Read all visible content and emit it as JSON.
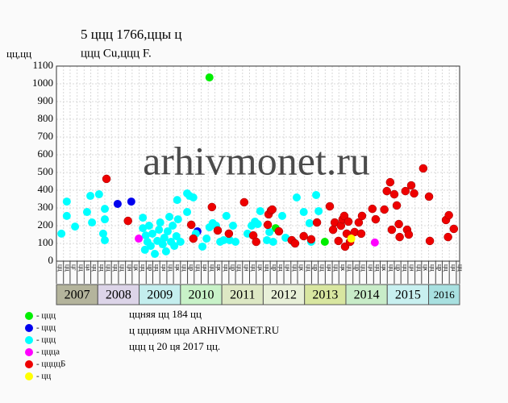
{
  "chart_data": {
    "type": "scatter",
    "title": "5 ццц 1766,ццы ц",
    "subtitle": "ццц Cu,ццц F.",
    "y_label": "цц,цц",
    "watermark": "arhivmonet.ru",
    "xlim": [
      2007,
      2016.75
    ],
    "ylim": [
      0,
      1100
    ],
    "yticks": [
      0,
      100,
      200,
      300,
      400,
      500,
      600,
      700,
      800,
      900,
      1000,
      1100
    ],
    "xticks": [
      {
        "value": 2007,
        "label": "цц"
      },
      {
        "value": 2007.17,
        "label": "цц"
      },
      {
        "value": 2007.33,
        "label": "цг"
      },
      {
        "value": 2007.5,
        "label": "цц"
      },
      {
        "value": 2007.67,
        "label": "ца"
      },
      {
        "value": 2007.83,
        "label": "цц"
      },
      {
        "value": 2008,
        "label": "цц"
      },
      {
        "value": 2008.17,
        "label": "цц"
      },
      {
        "value": 2008.33,
        "label": "цц"
      },
      {
        "value": 2008.5,
        "label": "цц"
      },
      {
        "value": 2008.67,
        "label": "цн"
      },
      {
        "value": 2008.83,
        "label": "цк"
      },
      {
        "value": 2009,
        "label": "цц"
      },
      {
        "value": 2009.17,
        "label": "цр"
      },
      {
        "value": 2009.33,
        "label": "цц"
      },
      {
        "value": 2009.5,
        "label": "цн"
      },
      {
        "value": 2009.67,
        "label": "цц"
      },
      {
        "value": 2009.83,
        "label": "цк"
      },
      {
        "value": 2010,
        "label": "цц"
      },
      {
        "value": 2010.17,
        "label": "цр"
      },
      {
        "value": 2010.33,
        "label": "цц"
      },
      {
        "value": 2010.5,
        "label": "цн"
      },
      {
        "value": 2010.67,
        "label": "цц"
      },
      {
        "value": 2010.83,
        "label": "цк"
      },
      {
        "value": 2011,
        "label": "цц"
      },
      {
        "value": 2011.17,
        "label": "цр"
      },
      {
        "value": 2011.33,
        "label": "цц"
      },
      {
        "value": 2011.5,
        "label": "цн"
      },
      {
        "value": 2011.67,
        "label": "цц"
      },
      {
        "value": 2011.83,
        "label": "цк"
      },
      {
        "value": 2012,
        "label": "цц"
      },
      {
        "value": 2012.17,
        "label": "цр"
      },
      {
        "value": 2012.33,
        "label": "цц"
      },
      {
        "value": 2012.5,
        "label": "цн"
      },
      {
        "value": 2012.67,
        "label": "цц"
      },
      {
        "value": 2012.83,
        "label": "цк"
      },
      {
        "value": 2013,
        "label": "цц"
      },
      {
        "value": 2013.17,
        "label": "цр"
      },
      {
        "value": 2013.33,
        "label": "цц"
      },
      {
        "value": 2013.5,
        "label": "цн"
      },
      {
        "value": 2013.67,
        "label": "цц"
      },
      {
        "value": 2013.83,
        "label": "цк"
      },
      {
        "value": 2014,
        "label": "цц"
      },
      {
        "value": 2014.17,
        "label": "цр"
      },
      {
        "value": 2014.33,
        "label": "цц"
      },
      {
        "value": 2014.5,
        "label": "цн"
      },
      {
        "value": 2014.67,
        "label": "цц"
      },
      {
        "value": 2014.83,
        "label": "цк"
      },
      {
        "value": 2015,
        "label": "цц"
      },
      {
        "value": 2015.17,
        "label": "цр"
      },
      {
        "value": 2015.33,
        "label": "цц"
      },
      {
        "value": 2015.5,
        "label": "цн"
      },
      {
        "value": 2015.67,
        "label": "цц"
      },
      {
        "value": 2015.83,
        "label": "цк"
      },
      {
        "value": 2016,
        "label": "цц"
      },
      {
        "value": 2016.17,
        "label": "цр"
      },
      {
        "value": 2016.33,
        "label": "цц"
      },
      {
        "value": 2016.5,
        "label": "цн"
      },
      {
        "value": 2016.67,
        "label": "цц"
      }
    ],
    "years": [
      "2007",
      "2008",
      "2009",
      "2010",
      "2011",
      "2012",
      "2013",
      "2014",
      "2015",
      "2016"
    ],
    "year_colors": [
      "#b4b49c",
      "#dcd4e8",
      "#c4eeee",
      "#c8f2c8",
      "#dde8c4",
      "#e8f0d8",
      "#d8e6a0",
      "#c8ecc8",
      "#c8f0f0",
      "#a8e0e0"
    ],
    "grid": true,
    "series": [
      {
        "name": "- ццц",
        "color": "#00ee00",
        "x": [
          2010.7,
          2012.3,
          2013.49
        ],
        "values": [
          1036,
          186,
          109
        ]
      },
      {
        "name": "- ццц",
        "color": "#0000ee",
        "x": [
          2008.48,
          2008.81,
          2010.41
        ],
        "values": [
          323,
          336,
          168
        ]
      },
      {
        "name": "- ццц",
        "color": "#00ffff",
        "x": [
          2007.12,
          2007.25,
          2007.25,
          2007.45,
          2007.74,
          2007.82,
          2007.86,
          2008.03,
          2008.13,
          2008.17,
          2008.17,
          2008.17,
          2009.09,
          2009.09,
          2009.14,
          2009.16,
          2009.2,
          2009.24,
          2009.28,
          2009.32,
          2009.38,
          2009.44,
          2009.48,
          2009.51,
          2009.57,
          2009.61,
          2009.65,
          2009.69,
          2009.73,
          2009.77,
          2009.81,
          2009.85,
          2009.9,
          2009.94,
          2010.0,
          2009.92,
          2010.16,
          2010.22,
          2010.16,
          2010.31,
          2010.37,
          2010.53,
          2010.63,
          2010.7,
          2010.78,
          2010.86,
          2010.96,
          2011.04,
          2011.11,
          2011.19,
          2011.27,
          2011.33,
          2011.62,
          2011.72,
          2011.8,
          2011.87,
          2011.93,
          2012.09,
          2012.15,
          2012.24,
          2012.46,
          2012.54,
          2012.73,
          2012.81,
          2012.98,
          2013.12,
          2013.28,
          2013.34,
          2013.16
        ],
        "values": [
          155,
          255,
          336,
          195,
          277,
          368,
          218,
          377,
          155,
          236,
          118,
          295,
          186,
          245,
          64,
          145,
          109,
          200,
          86,
          155,
          41,
          114,
          177,
          218,
          95,
          132,
          55,
          168,
          250,
          109,
          200,
          86,
          141,
          236,
          109,
          345,
          382,
          368,
          277,
          359,
          155,
          82,
          127,
          191,
          214,
          200,
          109,
          118,
          255,
          118,
          200,
          109,
          155,
          200,
          223,
          209,
          282,
          118,
          164,
          109,
          255,
          132,
          109,
          359,
          277,
          214,
          373,
          282,
          109
        ]
      },
      {
        "name": "- цццa",
        "color": "#ff00ff",
        "x": [
          2008.99,
          2014.7
        ],
        "values": [
          127,
          105
        ]
      },
      {
        "name": "- ццццБ",
        "color": "#ee0000",
        "x": [
          2008.21,
          2008.73,
          2010.26,
          2010.31,
          2010.76,
          2010.9,
          2011.17,
          2011.54,
          2011.76,
          2011.83,
          2012.13,
          2012.19,
          2012.22,
          2012.11,
          2012.38,
          2012.69,
          2012.77,
          2012.98,
          2013.16,
          2013.3,
          2013.61,
          2013.69,
          2013.73,
          2013.82,
          2013.88,
          2013.92,
          2013.96,
          2013.98,
          2014.02,
          2014.06,
          2014.1,
          2014.21,
          2014.31,
          2014.37,
          2014.39,
          2014.64,
          2014.72,
          2014.93,
          2014.99,
          2015.07,
          2015.11,
          2015.17,
          2015.23,
          2015.28,
          2015.3,
          2015.44,
          2015.48,
          2015.52,
          2015.58,
          2015.65,
          2015.87,
          2016.01,
          2016.03,
          2016.42,
          2016.49,
          2016.47,
          2016.61
        ],
        "values": [
          464,
          227,
          205,
          127,
          305,
          173,
          155,
          332,
          145,
          109,
          264,
          286,
          291,
          205,
          168,
          118,
          100,
          141,
          123,
          218,
          309,
          177,
          218,
          114,
          200,
          236,
          255,
          82,
          155,
          223,
          109,
          164,
          218,
          155,
          255,
          295,
          236,
          291,
          395,
          445,
          177,
          377,
          314,
          209,
          136,
          395,
          177,
          150,
          427,
          382,
          523,
          364,
          114,
          232,
          259,
          136,
          182
        ]
      },
      {
        "name": "- цц",
        "color": "#ffff00",
        "x": [
          2014.13
        ],
        "values": [
          127
        ]
      }
    ],
    "notes": [
      "ццняя цц 184 цц",
      "ц ццциям цца ARHIVMONET.RU",
      "ццц ц 20 ця 2017 цц."
    ]
  }
}
